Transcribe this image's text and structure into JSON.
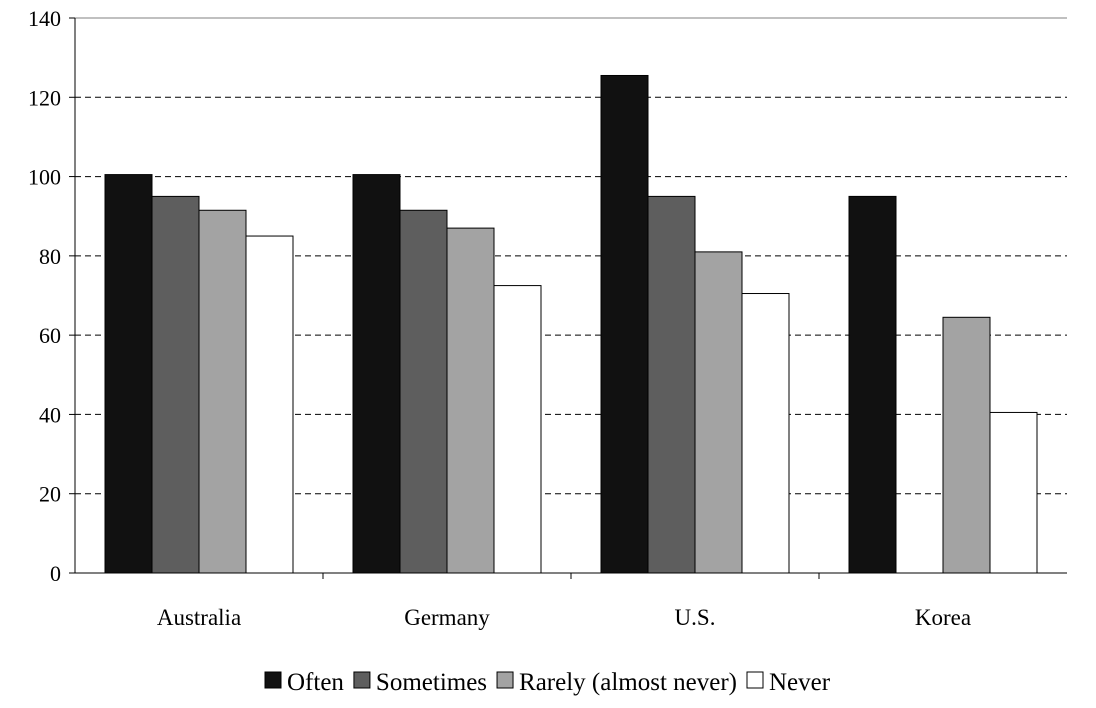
{
  "chart_data": {
    "type": "bar",
    "title": "",
    "xlabel": "",
    "ylabel": "",
    "ylim": [
      0,
      140
    ],
    "yticks": [
      0,
      20,
      40,
      60,
      80,
      100,
      120,
      140
    ],
    "grid": "horizontal-dashed",
    "legend_position": "bottom",
    "categories": [
      "Australia",
      "Germany",
      "U.S.",
      "Korea"
    ],
    "series": [
      {
        "name": "Often",
        "color": "#111111",
        "values": [
          100.5,
          100.5,
          125.5,
          95
        ]
      },
      {
        "name": "Sometimes",
        "color": "#5e5e5e",
        "values": [
          95,
          91.5,
          95,
          null
        ]
      },
      {
        "name": "Rarely (almost never)",
        "color": "#a3a3a3",
        "values": [
          91.5,
          87,
          81,
          64.5
        ]
      },
      {
        "name": "Never",
        "color": "#ffffff",
        "values": [
          85,
          72.5,
          70.5,
          40.5
        ]
      }
    ]
  }
}
